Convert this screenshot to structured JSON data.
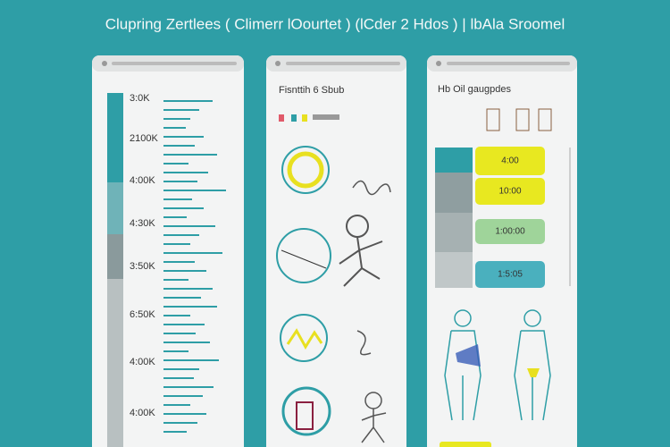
{
  "header": {
    "title": "Clupring Zertlees ( Climerr lOourtet ) (lCder 2 Hdos ) | lbAla Sroomel"
  },
  "panels": [
    {
      "labels": [
        "3:0K",
        "2100K",
        "4:00K",
        "4:30K",
        "3:50K",
        "6:50K",
        "4:00K",
        "4:00K"
      ]
    },
    {
      "title": "Fisnttih 6 Sbub"
    },
    {
      "title": "Hb Oil gaugpdes",
      "bars": [
        "4:00",
        "10:00",
        "1:00:00",
        "1:5:05"
      ]
    }
  ]
}
